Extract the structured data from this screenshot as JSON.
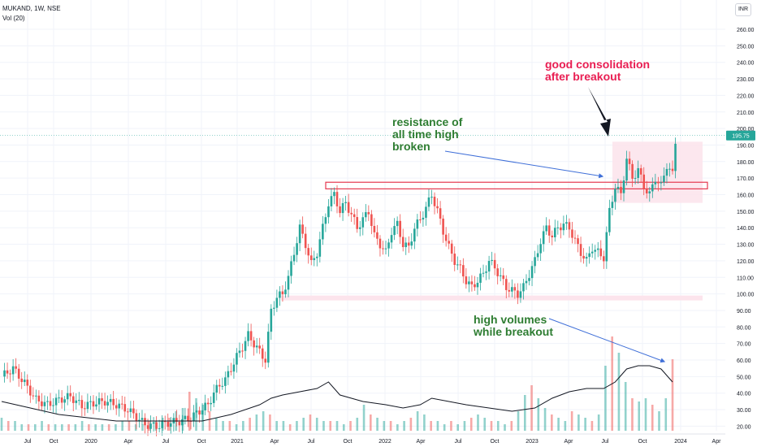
{
  "header": {
    "symbol": "MUKAND, 1W, NSE",
    "indicator": "Vol (20)",
    "currency": "INR"
  },
  "chart_data": {
    "type": "candlestick",
    "price_axis": {
      "ticks": [
        20,
        30,
        40,
        50,
        60,
        70,
        80,
        90,
        100,
        110,
        120,
        130,
        140,
        150,
        160,
        170,
        180,
        190,
        200,
        210,
        220,
        230,
        240,
        250,
        260
      ],
      "last_price": "195.75"
    },
    "time_axis": {
      "labels": [
        "Jul",
        "Oct",
        "2020",
        "Apr",
        "Jul",
        "Oct",
        "2021",
        "Apr",
        "Jul",
        "Oct",
        "2022",
        "Apr",
        "Jul",
        "Oct",
        "2023",
        "Apr",
        "Jul",
        "Oct",
        "2024",
        "Apr"
      ]
    },
    "series": [
      {
        "name": "price",
        "path": [
          [
            0,
            50
          ],
          [
            4,
            55
          ],
          [
            8,
            46
          ],
          [
            12,
            36
          ],
          [
            16,
            33
          ],
          [
            20,
            36
          ],
          [
            24,
            38
          ],
          [
            28,
            32
          ],
          [
            32,
            34
          ],
          [
            36,
            35
          ],
          [
            40,
            33
          ],
          [
            44,
            30
          ],
          [
            46,
            27
          ],
          [
            48,
            24
          ],
          [
            50,
            21
          ],
          [
            54,
            20
          ],
          [
            58,
            22
          ],
          [
            62,
            23
          ],
          [
            66,
            25
          ],
          [
            68,
            28
          ],
          [
            72,
            33
          ],
          [
            74,
            40
          ],
          [
            76,
            45
          ],
          [
            78,
            48
          ],
          [
            80,
            55
          ],
          [
            82,
            62
          ],
          [
            84,
            68
          ],
          [
            86,
            75
          ],
          [
            88,
            70
          ],
          [
            90,
            65
          ],
          [
            92,
            60
          ],
          [
            94,
            90
          ],
          [
            96,
            98
          ],
          [
            98,
            100
          ],
          [
            100,
            110
          ],
          [
            102,
            125
          ],
          [
            104,
            140
          ],
          [
            106,
            130
          ],
          [
            108,
            118
          ],
          [
            110,
            125
          ],
          [
            112,
            140
          ],
          [
            114,
            155
          ],
          [
            116,
            160
          ],
          [
            118,
            150
          ],
          [
            120,
            155
          ],
          [
            122,
            148
          ],
          [
            124,
            140
          ],
          [
            126,
            145
          ],
          [
            128,
            150
          ],
          [
            130,
            135
          ],
          [
            132,
            130
          ],
          [
            134,
            125
          ],
          [
            136,
            138
          ],
          [
            138,
            142
          ],
          [
            140,
            130
          ],
          [
            142,
            128
          ],
          [
            144,
            140
          ],
          [
            146,
            145
          ],
          [
            148,
            152
          ],
          [
            150,
            160
          ],
          [
            152,
            150
          ],
          [
            154,
            138
          ],
          [
            156,
            128
          ],
          [
            158,
            120
          ],
          [
            160,
            115
          ],
          [
            162,
            108
          ],
          [
            164,
            104
          ],
          [
            166,
            108
          ],
          [
            168,
            112
          ],
          [
            170,
            120
          ],
          [
            172,
            116
          ],
          [
            174,
            110
          ],
          [
            176,
            104
          ],
          [
            178,
            102
          ],
          [
            180,
            100
          ],
          [
            182,
            104
          ],
          [
            184,
            112
          ],
          [
            186,
            120
          ],
          [
            188,
            132
          ],
          [
            190,
            140
          ],
          [
            192,
            135
          ],
          [
            194,
            140
          ],
          [
            196,
            142
          ],
          [
            198,
            140
          ],
          [
            200,
            132
          ],
          [
            202,
            125
          ],
          [
            204,
            120
          ],
          [
            206,
            128
          ],
          [
            208,
            125
          ],
          [
            210,
            122
          ],
          [
            212,
            150
          ],
          [
            214,
            165
          ],
          [
            216,
            160
          ],
          [
            218,
            182
          ],
          [
            220,
            170
          ],
          [
            222,
            175
          ],
          [
            224,
            165
          ],
          [
            226,
            160
          ],
          [
            228,
            170
          ],
          [
            230,
            165
          ],
          [
            232,
            178
          ],
          [
            234,
            172
          ],
          [
            235,
            192
          ]
        ]
      },
      {
        "name": "volume",
        "values": [
          4,
          3,
          3,
          2,
          2,
          2,
          3,
          2,
          2,
          2,
          2,
          2,
          3,
          2,
          2,
          2,
          2,
          2,
          3,
          3,
          2,
          2,
          3,
          3,
          4,
          4,
          6,
          7,
          12,
          10,
          8,
          6,
          4,
          3,
          3,
          2,
          3,
          4,
          5,
          6,
          5,
          3,
          3,
          2,
          3,
          4,
          5,
          4,
          3,
          3,
          3,
          2,
          3,
          4,
          8,
          5,
          4,
          3,
          3,
          2,
          3,
          4,
          6,
          5,
          3,
          3,
          2,
          3,
          2,
          3,
          4,
          5,
          4,
          3,
          3,
          2,
          3,
          6,
          11,
          14,
          10,
          7,
          5,
          4,
          3,
          6,
          5,
          4,
          3,
          5,
          20,
          29,
          24,
          15,
          10,
          9,
          10,
          8,
          6,
          10,
          22
        ]
      },
      {
        "name": "volume_ma",
        "path": [
          [
            0,
            9
          ],
          [
            10,
            7
          ],
          [
            20,
            5
          ],
          [
            30,
            4
          ],
          [
            40,
            3
          ],
          [
            50,
            3
          ],
          [
            60,
            3
          ],
          [
            70,
            3
          ],
          [
            80,
            5
          ],
          [
            90,
            8
          ],
          [
            94,
            10
          ],
          [
            98,
            11
          ],
          [
            104,
            12
          ],
          [
            110,
            13
          ],
          [
            114,
            15
          ],
          [
            118,
            11
          ],
          [
            126,
            9
          ],
          [
            134,
            8
          ],
          [
            140,
            7
          ],
          [
            146,
            8
          ],
          [
            150,
            10
          ],
          [
            156,
            9
          ],
          [
            162,
            8
          ],
          [
            170,
            7
          ],
          [
            178,
            6
          ],
          [
            186,
            7
          ],
          [
            192,
            10
          ],
          [
            198,
            12
          ],
          [
            204,
            13
          ],
          [
            210,
            13
          ],
          [
            214,
            15
          ],
          [
            218,
            19
          ],
          [
            222,
            20
          ],
          [
            226,
            20
          ],
          [
            230,
            19
          ],
          [
            234,
            15
          ]
        ]
      }
    ],
    "annotations": [
      {
        "text": "resistance of\nall time high\nbroken"
      },
      {
        "text": "good consolidation\nafter breakout"
      },
      {
        "text": "high volumes\nwhile breakout"
      }
    ]
  }
}
